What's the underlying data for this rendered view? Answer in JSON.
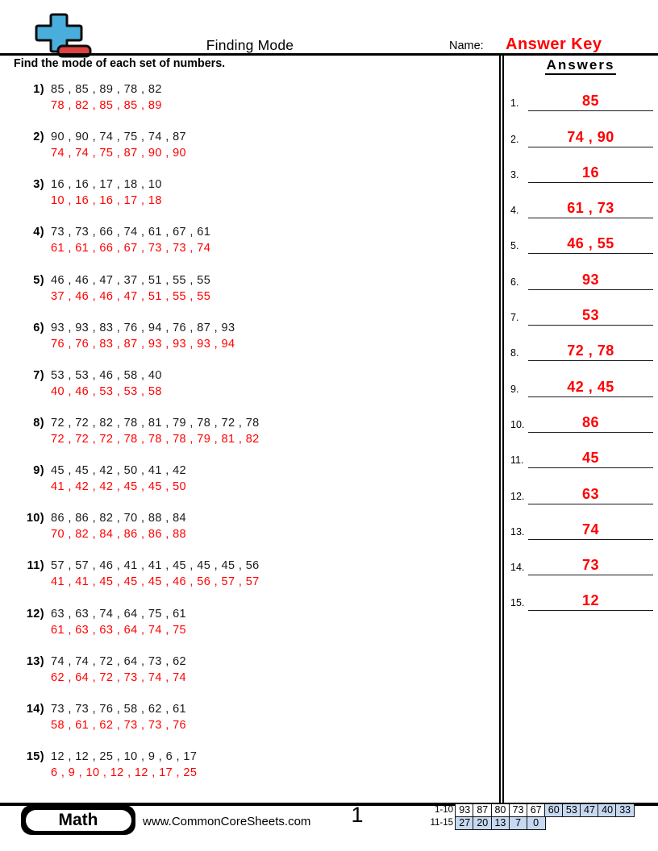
{
  "header": {
    "title": "Finding Mode",
    "name_label": "Name:",
    "name_value": "Answer Key",
    "instruction": "Find the mode of each set of numbers.",
    "answers_heading": "Answers"
  },
  "questions": [
    {
      "num": "1)",
      "set": "85 , 85 , 89 , 78 , 82",
      "sorted": "78 , 82 , 85 , 85 , 89"
    },
    {
      "num": "2)",
      "set": "90 , 90 , 74 , 75 , 74 , 87",
      "sorted": "74 , 74 , 75 , 87 , 90 , 90"
    },
    {
      "num": "3)",
      "set": "16 , 16 , 17 , 18 , 10",
      "sorted": "10 , 16 , 16 , 17 , 18"
    },
    {
      "num": "4)",
      "set": "73 , 73 , 66 , 74 , 61 , 67 , 61",
      "sorted": "61 , 61 , 66 , 67 , 73 , 73 , 74"
    },
    {
      "num": "5)",
      "set": "46 , 46 , 47 , 37 , 51 , 55 , 55",
      "sorted": "37 , 46 , 46 , 47 , 51 , 55 , 55"
    },
    {
      "num": "6)",
      "set": "93 , 93 , 83 , 76 , 94 , 76 , 87 , 93",
      "sorted": "76 , 76 , 83 , 87 , 93 , 93 , 93 , 94"
    },
    {
      "num": "7)",
      "set": "53 , 53 , 46 , 58 , 40",
      "sorted": "40 , 46 , 53 , 53 , 58"
    },
    {
      "num": "8)",
      "set": "72 , 72 , 82 , 78 , 81 , 79 , 78 , 72 , 78",
      "sorted": "72 , 72 , 72 , 78 , 78 , 78 , 79 , 81 , 82"
    },
    {
      "num": "9)",
      "set": "45 , 45 , 42 , 50 , 41 , 42",
      "sorted": "41 , 42 , 42 , 45 , 45 , 50"
    },
    {
      "num": "10)",
      "set": "86 , 86 , 82 , 70 , 88 , 84",
      "sorted": "70 , 82 , 84 , 86 , 86 , 88"
    },
    {
      "num": "11)",
      "set": "57 , 57 , 46 , 41 , 41 , 45 , 45 , 45 , 56",
      "sorted": "41 , 41 , 45 , 45 , 45 , 46 , 56 , 57 , 57"
    },
    {
      "num": "12)",
      "set": "63 , 63 , 74 , 64 , 75 , 61",
      "sorted": "61 , 63 , 63 , 64 , 74 , 75"
    },
    {
      "num": "13)",
      "set": "74 , 74 , 72 , 64 , 73 , 62",
      "sorted": "62 , 64 , 72 , 73 , 74 , 74"
    },
    {
      "num": "14)",
      "set": "73 , 73 , 76 , 58 , 62 , 61",
      "sorted": "58 , 61 , 62 , 73 , 73 , 76"
    },
    {
      "num": "15)",
      "set": "12 , 12 , 25 , 10 , 9 , 6 , 17",
      "sorted": "6 , 9 , 10 , 12 , 12 , 17 , 25"
    }
  ],
  "answers": [
    {
      "num": "1.",
      "value": "85"
    },
    {
      "num": "2.",
      "value": "74 , 90"
    },
    {
      "num": "3.",
      "value": "16"
    },
    {
      "num": "4.",
      "value": "61 , 73"
    },
    {
      "num": "5.",
      "value": "46 , 55"
    },
    {
      "num": "6.",
      "value": "93"
    },
    {
      "num": "7.",
      "value": "53"
    },
    {
      "num": "8.",
      "value": "72 , 78"
    },
    {
      "num": "9.",
      "value": "42 , 45"
    },
    {
      "num": "10.",
      "value": "86"
    },
    {
      "num": "11.",
      "value": "45"
    },
    {
      "num": "12.",
      "value": "63"
    },
    {
      "num": "13.",
      "value": "74"
    },
    {
      "num": "14.",
      "value": "73"
    },
    {
      "num": "15.",
      "value": "12"
    }
  ],
  "footer": {
    "badge": "Math",
    "website": "www.CommonCoreSheets.com",
    "page": "1",
    "score_rows": [
      {
        "label": "1-10",
        "cells": [
          {
            "v": "93",
            "hl": false
          },
          {
            "v": "87",
            "hl": false
          },
          {
            "v": "80",
            "hl": false
          },
          {
            "v": "73",
            "hl": false
          },
          {
            "v": "67",
            "hl": false
          },
          {
            "v": "60",
            "hl": true
          },
          {
            "v": "53",
            "hl": true
          },
          {
            "v": "47",
            "hl": true
          },
          {
            "v": "40",
            "hl": true
          },
          {
            "v": "33",
            "hl": true
          }
        ]
      },
      {
        "label": "11-15",
        "cells": [
          {
            "v": "27",
            "hl": true
          },
          {
            "v": "20",
            "hl": true
          },
          {
            "v": "13",
            "hl": true
          },
          {
            "v": "7",
            "hl": true
          },
          {
            "v": "0",
            "hl": true
          }
        ]
      }
    ]
  },
  "colors": {
    "accent-red": "#ff0000",
    "score-highlight": "#c6d9f0",
    "logo-blue": "#4aaedc",
    "logo-red": "#e04141"
  }
}
